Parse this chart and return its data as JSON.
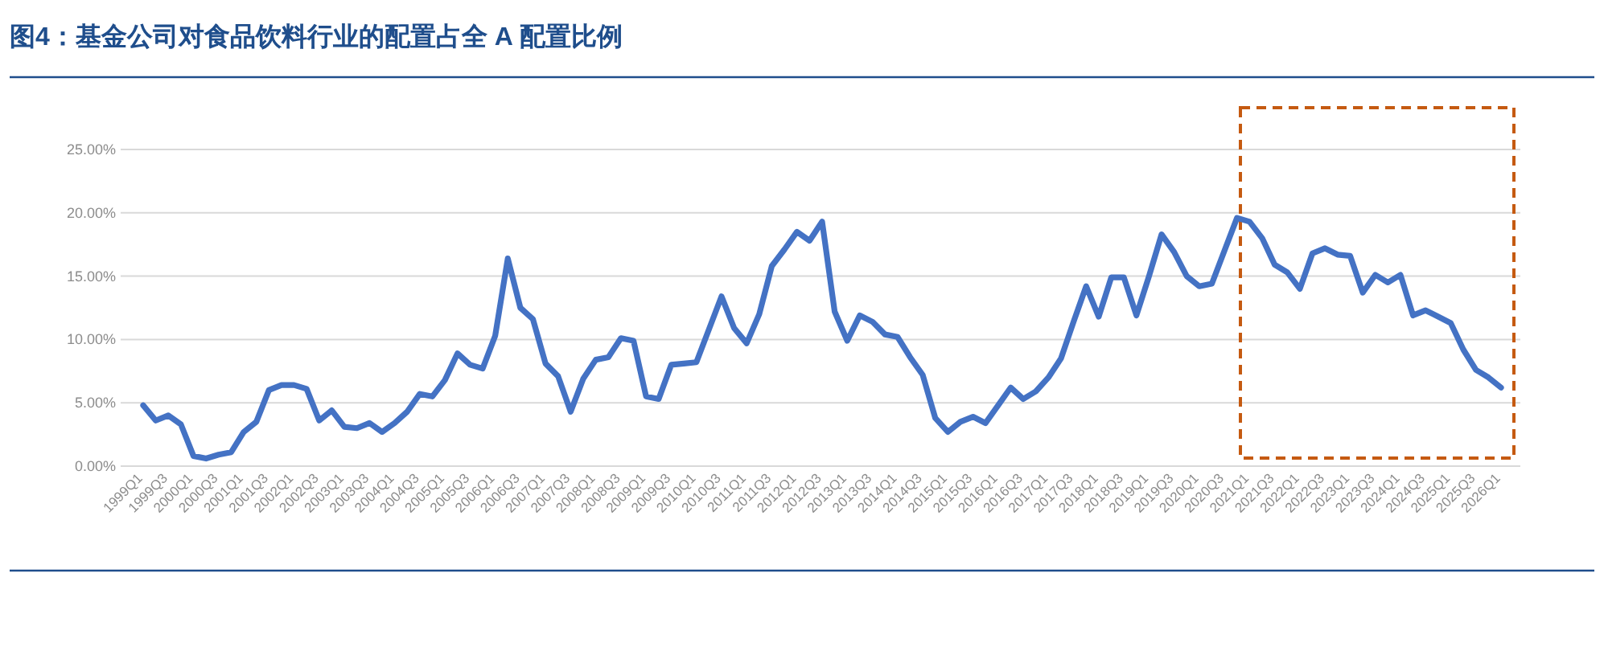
{
  "chart_data": {
    "type": "line",
    "title": "图4：基金公司对食品饮料行业的配置占全 A 配置比例",
    "categories": [
      "1999Q1",
      null,
      "1999Q3",
      null,
      "2000Q1",
      null,
      "2000Q3",
      null,
      "2001Q1",
      null,
      "2001Q3",
      null,
      "2002Q1",
      null,
      "2002Q3",
      null,
      "2003Q1",
      null,
      "2003Q3",
      null,
      "2004Q1",
      null,
      "2004Q3",
      null,
      "2005Q1",
      null,
      "2005Q3",
      null,
      "2006Q1",
      null,
      "2006Q3",
      null,
      "2007Q1",
      null,
      "2007Q3",
      null,
      "2008Q1",
      null,
      "2008Q3",
      null,
      "2009Q1",
      null,
      "2009Q3",
      null,
      "2010Q1",
      null,
      "2010Q3",
      null,
      "2011Q1",
      null,
      "2011Q3",
      null,
      "2012Q1",
      null,
      "2012Q3",
      null,
      "2013Q1",
      null,
      "2013Q3",
      null,
      "2014Q1",
      null,
      "2014Q3",
      null,
      "2015Q1",
      null,
      "2015Q3",
      null,
      "2016Q1",
      null,
      "2016Q3",
      null,
      "2017Q1",
      null,
      "2017Q3",
      null,
      "2018Q1",
      null,
      "2018Q3",
      null,
      "2019Q1",
      null,
      "2019Q3",
      null,
      "2020Q1",
      null,
      "2020Q3",
      null,
      "2021Q1",
      null,
      "2021Q3",
      null,
      "2022Q1",
      null,
      "2022Q3",
      null,
      "2023Q1",
      null,
      "2023Q3",
      null,
      "2024Q1",
      null,
      "2024Q3",
      null,
      "2025Q1",
      null,
      "2025Q3",
      null,
      "2026Q1"
    ],
    "series": [
      {
        "color": "#4472c4",
        "values": [
          4.8,
          3.6,
          4.0,
          3.3,
          0.8,
          0.6,
          0.9,
          1.1,
          2.7,
          3.5,
          6.0,
          6.4,
          6.4,
          6.1,
          3.6,
          4.4,
          3.1,
          3.0,
          3.4,
          2.7,
          3.4,
          4.3,
          5.7,
          5.5,
          6.8,
          8.9,
          8.0,
          7.7,
          10.3,
          16.4,
          12.5,
          11.6,
          8.1,
          7.1,
          4.3,
          6.9,
          8.4,
          8.6,
          10.1,
          9.9,
          5.5,
          5.3,
          8.0,
          8.1,
          8.2,
          10.8,
          13.4,
          10.9,
          9.7,
          12.0,
          15.8,
          17.1,
          18.5,
          17.8,
          19.3,
          12.2,
          9.9,
          11.9,
          11.4,
          10.4,
          10.2,
          8.6,
          7.2,
          3.8,
          2.7,
          3.5,
          3.9,
          3.4,
          4.8,
          6.2,
          5.3,
          5.9,
          7.0,
          8.5,
          11.4,
          14.2,
          11.8,
          14.9,
          14.9,
          11.9,
          15.0,
          18.3,
          16.9,
          15.0,
          14.2,
          14.4,
          17.0,
          19.6,
          19.3,
          18.0,
          15.9,
          15.3,
          14.0,
          16.8,
          17.2,
          16.7,
          16.6,
          13.7,
          15.1,
          14.5,
          15.1,
          11.9,
          12.3,
          11.8,
          11.3,
          9.2,
          7.6,
          7.0,
          6.2
        ]
      }
    ],
    "ylim": [
      0,
      25
    ],
    "yticks": [
      {
        "value": 0,
        "label": "0.00%"
      },
      {
        "value": 5,
        "label": "5.00%"
      },
      {
        "value": 10,
        "label": "10.00%"
      },
      {
        "value": 15,
        "label": "15.00%"
      },
      {
        "value": 20,
        "label": "20.00%"
      },
      {
        "value": 25,
        "label": "25.00%"
      }
    ],
    "grid": "y"
  }
}
